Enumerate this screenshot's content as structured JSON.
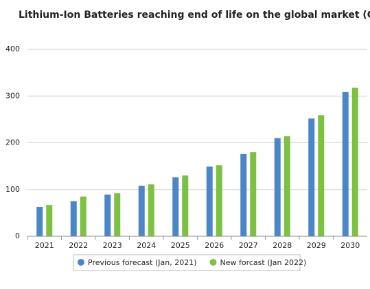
{
  "chart_data": {
    "type": "bar",
    "title": "Lithium-Ion Batteries reaching end of life on the global market (GWh)",
    "categories": [
      "2021",
      "2022",
      "2023",
      "2024",
      "2025",
      "2026",
      "2027",
      "2028",
      "2029",
      "2030"
    ],
    "series": [
      {
        "name": "Previous forecast (Jan, 2021)",
        "color": "#4a86c8",
        "values": [
          63,
          75,
          89,
          108,
          126,
          149,
          176,
          210,
          252,
          309
        ]
      },
      {
        "name": "New forcast (Jan 2022)",
        "color": "#7dc142",
        "values": [
          67,
          85,
          92,
          111,
          130,
          152,
          180,
          214,
          259,
          318
        ]
      }
    ],
    "ylim": [
      0,
      400
    ],
    "yticks": [
      0,
      100,
      200,
      300,
      400
    ],
    "grid": true
  }
}
